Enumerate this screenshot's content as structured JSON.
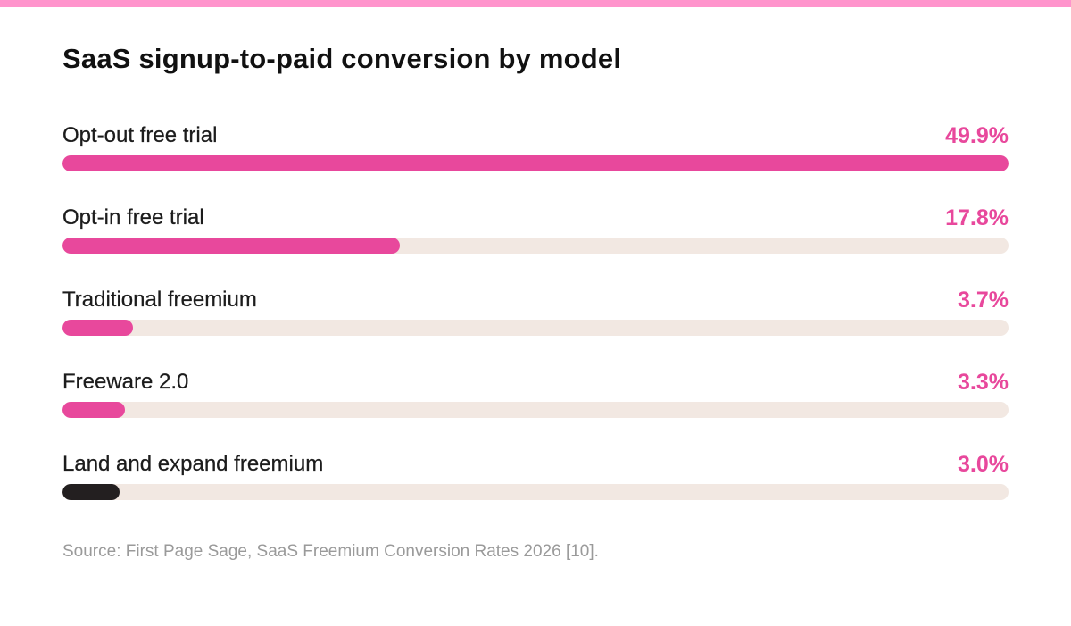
{
  "colors": {
    "accent": "#e8489c",
    "accent_strip": "#ff94cc",
    "dark_bar": "#231f20",
    "track": "#f2e8e2"
  },
  "chart_data": {
    "type": "bar",
    "orientation": "horizontal",
    "title": "SaaS signup-to-paid conversion by model",
    "categories": [
      "Opt-out free trial",
      "Opt-in free trial",
      "Traditional freemium",
      "Freeware 2.0",
      "Land and expand freemium"
    ],
    "values": [
      49.9,
      17.8,
      3.7,
      3.3,
      3.0
    ],
    "value_labels": [
      "49.9%",
      "17.8%",
      "3.7%",
      "3.3%",
      "3.0%"
    ],
    "unit": "%",
    "xlim": [
      0,
      49.9
    ],
    "bar_colors": [
      "#e8489c",
      "#e8489c",
      "#e8489c",
      "#e8489c",
      "#231f20"
    ],
    "grid": false,
    "legend": "none"
  },
  "source": "Source: First Page Sage, SaaS Freemium Conversion Rates 2026 [10]."
}
